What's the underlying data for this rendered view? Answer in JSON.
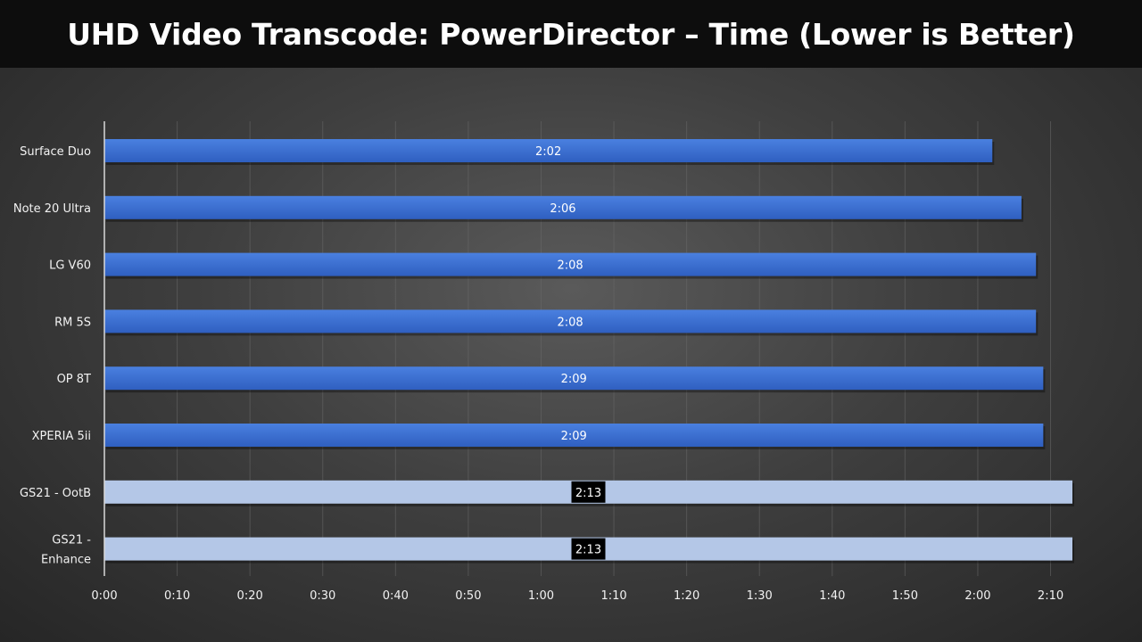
{
  "chart_data": {
    "type": "bar",
    "orientation": "horizontal",
    "title": "UHD Video Transcode: PowerDirector – Time (Lower is Better)",
    "xlabel": "",
    "ylabel": "",
    "categories": [
      [
        "Surface Duo"
      ],
      [
        "Note 20 Ultra"
      ],
      [
        "LG V60"
      ],
      [
        "RM 5S"
      ],
      [
        "OP 8T"
      ],
      [
        "XPERIA 5ii"
      ],
      [
        "GS21 - OotB"
      ],
      [
        "GS21 -",
        "Enhance"
      ]
    ],
    "values_seconds": [
      122,
      126,
      128,
      128,
      129,
      129,
      133,
      133
    ],
    "data_labels": [
      "2:02",
      "2:06",
      "2:08",
      "2:08",
      "2:09",
      "2:09",
      "2:13",
      "2:13"
    ],
    "highlighted": [
      false,
      false,
      false,
      false,
      false,
      false,
      true,
      true
    ],
    "xlim_seconds": [
      0,
      133
    ],
    "x_ticks_seconds": [
      0,
      10,
      20,
      30,
      40,
      50,
      60,
      70,
      80,
      90,
      100,
      110,
      120,
      130
    ],
    "x_tick_labels": [
      "0:00",
      "0:10",
      "0:20",
      "0:30",
      "0:40",
      "0:50",
      "1:00",
      "1:10",
      "1:20",
      "1:30",
      "1:40",
      "1:50",
      "2:00",
      "2:10"
    ],
    "grid": true,
    "legend": "none",
    "colors": {
      "bar": "#3a6fd1",
      "bar_highlight": "#b4c7e7",
      "label_box": "#000000",
      "text": "#ffffff",
      "gridline": "#6a6a6a",
      "axis": "#d9d9d9"
    }
  }
}
